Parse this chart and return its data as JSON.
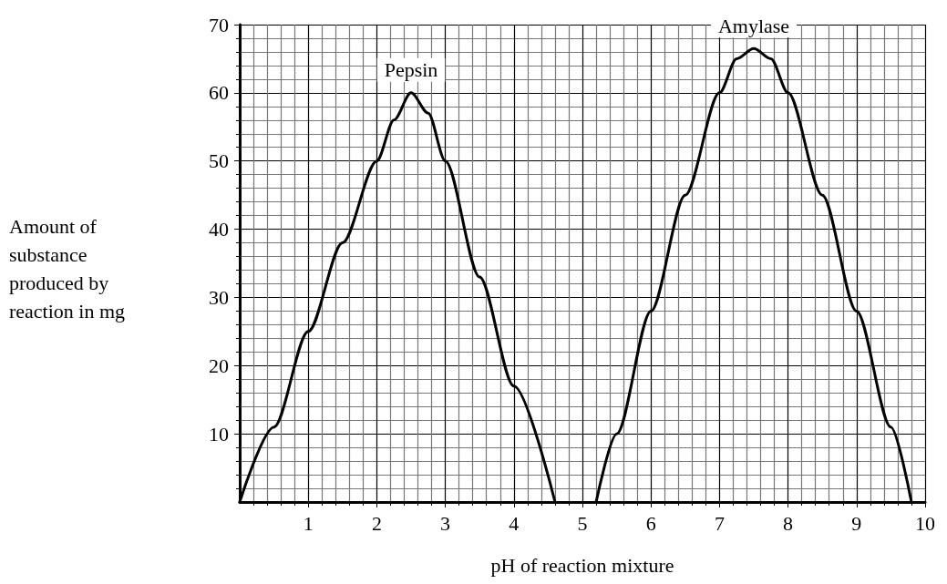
{
  "chart_data": {
    "type": "line",
    "xlabel": "pH of reaction mixture",
    "ylabel": "Amount of substance produced by reaction in mg",
    "series": [
      {
        "name": "Pepsin",
        "color": "#000000",
        "x": [
          0,
          0.5,
          1,
          1.5,
          2,
          2.25,
          2.5,
          2.75,
          3,
          3.5,
          4,
          4.6
        ],
        "values": [
          0,
          11,
          25,
          38,
          50,
          56,
          60,
          57,
          50,
          33,
          17,
          0
        ]
      },
      {
        "name": "Amylase",
        "color": "#000000",
        "x": [
          5.2,
          5.5,
          6,
          6.5,
          7,
          7.25,
          7.5,
          7.75,
          8,
          8.5,
          9,
          9.5,
          9.8
        ],
        "values": [
          0,
          10,
          28,
          45,
          60,
          65,
          66.5,
          65,
          60,
          45,
          28,
          11,
          0
        ]
      }
    ],
    "xlim": [
      0,
      10
    ],
    "xticks": [
      1,
      2,
      3,
      4,
      5,
      6,
      7,
      8,
      9,
      10
    ],
    "ylim": [
      0,
      70
    ],
    "yticks": [
      10,
      20,
      30,
      40,
      50,
      60,
      70
    ],
    "grid": true,
    "legend": false,
    "marker": "none",
    "line_style": "solid"
  }
}
